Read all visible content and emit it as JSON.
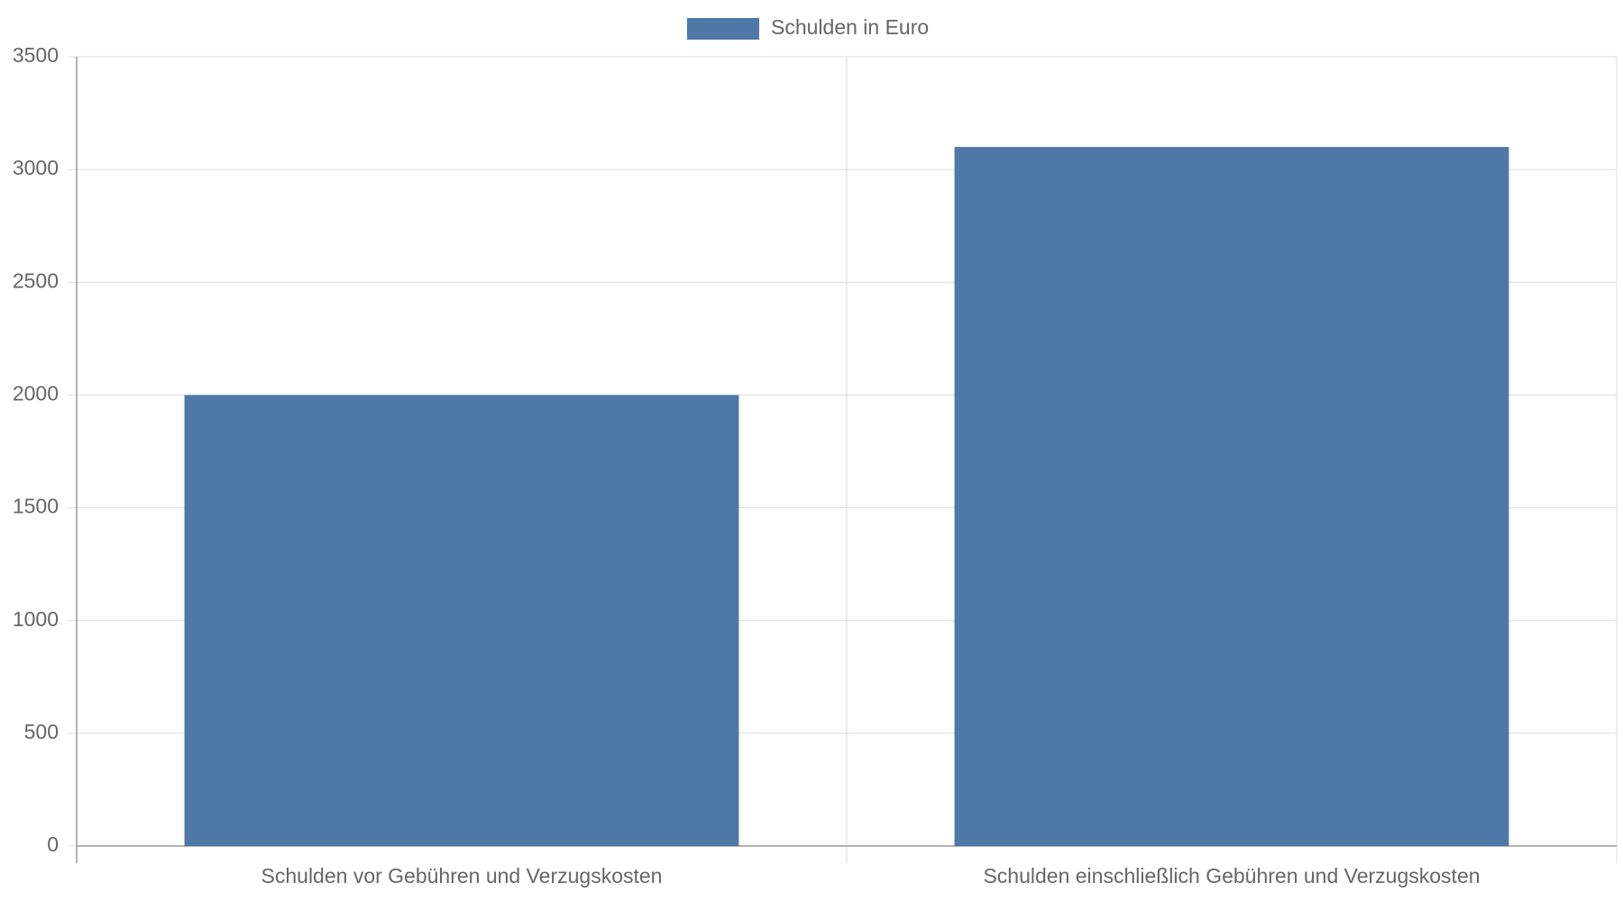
{
  "chart_data": {
    "type": "bar",
    "categories": [
      "Schulden vor Gebühren und Verzugskosten",
      "Schulden einschließlich Gebühren und Verzugskosten"
    ],
    "series": [
      {
        "name": "Schulden in Euro",
        "color": "#4e79a7",
        "values": [
          2000,
          3100
        ]
      }
    ],
    "ylim": [
      0,
      3500
    ],
    "yticks": [
      0,
      500,
      1000,
      1500,
      2000,
      2500,
      3000,
      3500
    ],
    "grid": true,
    "legend": "top"
  }
}
